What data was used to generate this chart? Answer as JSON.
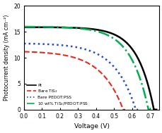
{
  "title": "",
  "xlabel": "Voltage (V)",
  "ylabel": "Photocurrent density (mA cm⁻²)",
  "xlim": [
    0.0,
    0.75
  ],
  "ylim": [
    0,
    20
  ],
  "xticks": [
    0.0,
    0.1,
    0.2,
    0.3,
    0.4,
    0.5,
    0.6,
    0.7
  ],
  "yticks": [
    0,
    5,
    10,
    15,
    20
  ],
  "curves": {
    "Pt": {
      "jsc": 15.9,
      "voc": 0.72,
      "ff": 0.72,
      "color": "#000000",
      "linestyle": "solid",
      "linewidth": 1.8
    },
    "Bare TiS2": {
      "jsc": 11.3,
      "voc": 0.55,
      "ff": 0.5,
      "color": "#e8291c",
      "linestyle": "dashed",
      "linewidth": 1.5
    },
    "Bare PEDOT:PSS": {
      "jsc": 12.8,
      "voc": 0.62,
      "ff": 0.58,
      "color": "#1f4fcc",
      "linestyle": "dotted",
      "linewidth": 1.8
    },
    "10 wt% TiS2/PEDOT:PSS": {
      "jsc": 16.0,
      "voc": 0.69,
      "ff": 0.68,
      "color": "#00b050",
      "linestyle": "dashdot",
      "linewidth": 1.8
    }
  },
  "legend_labels": [
    "Pt",
    "Bare TiS$_2$",
    "Bare PEDOT:PSS",
    "10 wt% TiS$_2$/PEDOT:PSS"
  ],
  "legend_colors": [
    "#000000",
    "#e8291c",
    "#1f4fcc",
    "#00b050"
  ],
  "legend_linestyles": [
    "solid",
    "dashed",
    "dotted",
    "dashdot"
  ],
  "background_color": "#ffffff"
}
